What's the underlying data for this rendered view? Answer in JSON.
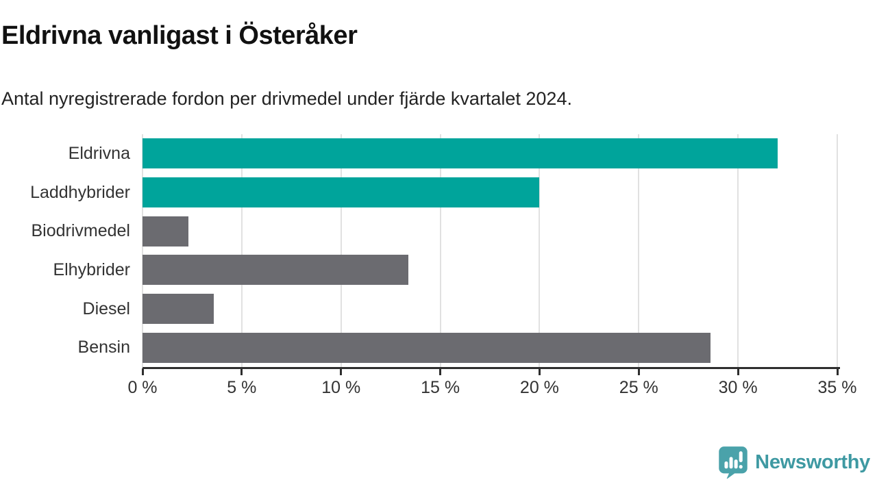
{
  "title": "Eldrivna vanligast i Österåker",
  "subtitle": "Antal nyregistrerade fordon per drivmedel under fjärde kvartalet 2024.",
  "chart_data": {
    "type": "bar",
    "orientation": "horizontal",
    "title": "Eldrivna vanligast i Österåker",
    "subtitle": "Antal nyregistrerade fordon per drivmedel under fjärde kvartalet 2024.",
    "categories": [
      "Eldrivna",
      "Laddhybrider",
      "Biodrivmedel",
      "Elhybrider",
      "Diesel",
      "Bensin"
    ],
    "values": [
      32.0,
      20.0,
      2.3,
      13.4,
      3.6,
      28.6
    ],
    "unit": "%",
    "xlim": [
      0,
      35
    ],
    "x_ticks": [
      0,
      5,
      10,
      15,
      20,
      25,
      30,
      35
    ],
    "x_tick_labels": [
      "0 %",
      "5 %",
      "10 %",
      "15 %",
      "20 %",
      "25 %",
      "30 %",
      "35 %"
    ],
    "bar_colors": [
      "#00a49b",
      "#00a49b",
      "#6b6b70",
      "#6b6b70",
      "#6b6b70",
      "#6b6b70"
    ],
    "grid": true,
    "legend": "none"
  },
  "colors": {
    "teal_bar": "#00a49b",
    "gray_bar": "#6b6b70",
    "gridline": "#e1e1e1",
    "axis": "#2e2e2e",
    "tick_text": "#333333",
    "title_text": "#111111",
    "logo_teal": "#4aa2aa",
    "logo_text_teal": "#3e99a2"
  },
  "branding": {
    "name": "Newsworthy"
  }
}
